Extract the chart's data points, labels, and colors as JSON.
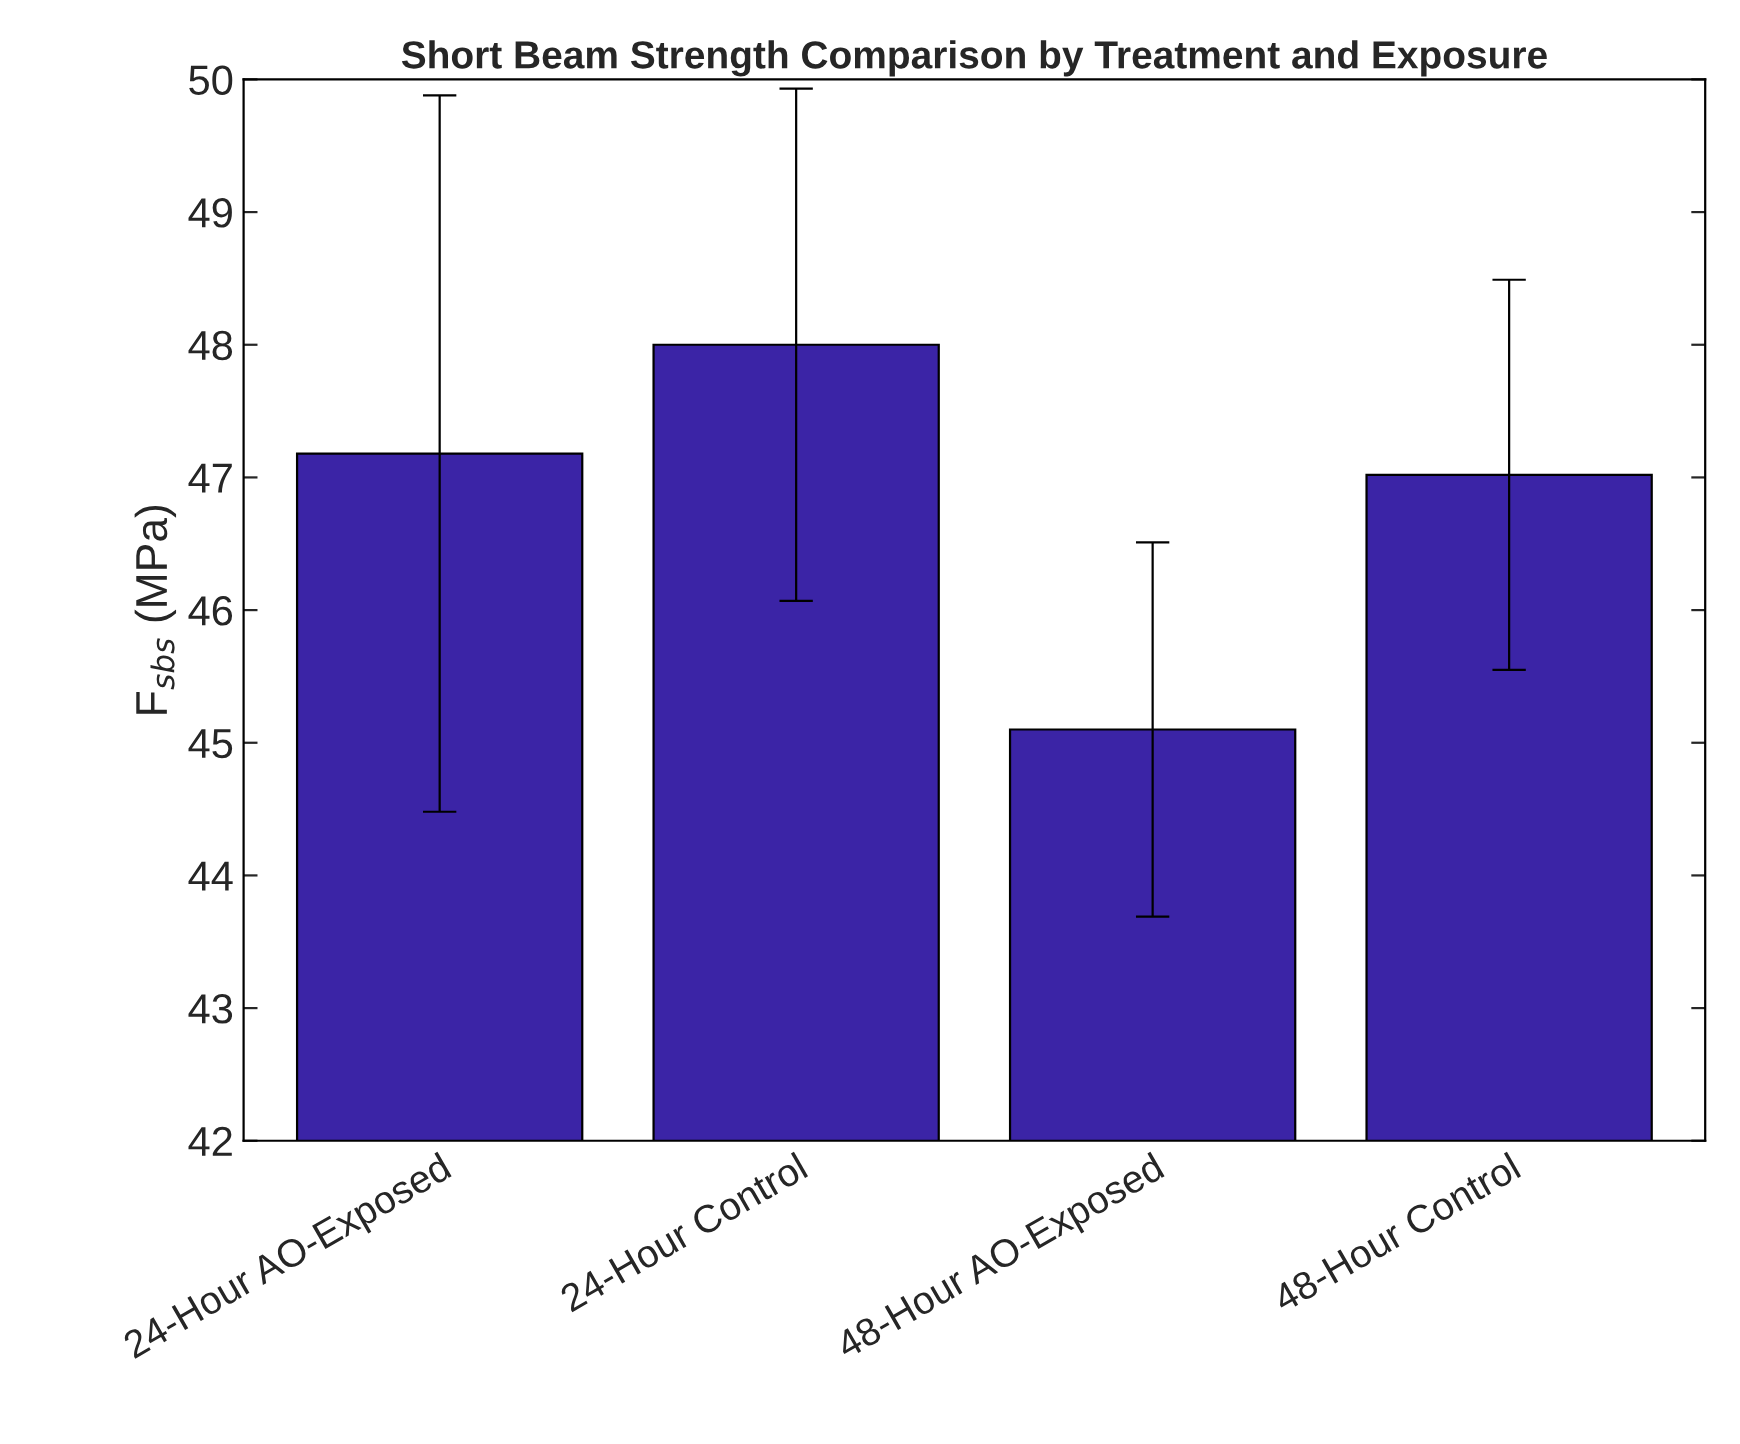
{
  "chart_data": {
    "type": "bar",
    "title": "Short Beam Strength Comparison by Treatment and Exposure",
    "ylabel": "F$_{sbs}$ (MPa)",
    "categories": [
      "24-Hour AO-Exposed",
      "24-Hour Control",
      "48-Hour AO-Exposed",
      "48-Hour Control"
    ],
    "values": [
      47.18,
      48.0,
      45.1,
      47.02
    ],
    "errors": [
      2.7,
      1.93,
      1.41,
      1.47
    ],
    "color": "#3b24a6",
    "ylim": [
      42,
      50
    ],
    "yticks": [
      42,
      43,
      44,
      45,
      46,
      47,
      48,
      49,
      50
    ],
    "grid": false
  }
}
